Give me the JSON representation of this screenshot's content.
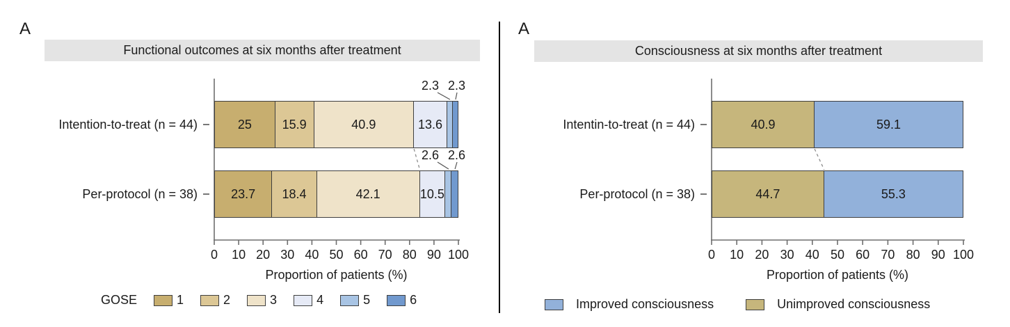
{
  "styles": {
    "title_band_bg": "#e4e4e4",
    "segment_border": "#3f3f3f",
    "axis_color": "#6e6e6e",
    "connector_color": "#8c8c8c",
    "leader_color": "#555555",
    "text_color": "#1a1a1a",
    "divider_color": "#000000"
  },
  "chart_data": [
    {
      "type": "bar",
      "orientation": "horizontal",
      "stacked": true,
      "panel_letter": "A",
      "title": "Functional outcomes at six months after treatment",
      "xlabel": "Proportion of patients (%)",
      "xlim": [
        0,
        100
      ],
      "xticks": [
        0,
        10,
        20,
        30,
        40,
        50,
        60,
        70,
        80,
        90,
        100
      ],
      "grid": false,
      "legend_position": "bottom",
      "legend_title": "GOSE",
      "categories": [
        "Intention-to-treat (n = 44)",
        "Per-protocol (n = 38)"
      ],
      "series": [
        {
          "name": "1",
          "color": "#c7ae6f",
          "values": [
            25,
            23.7
          ]
        },
        {
          "name": "2",
          "color": "#dcc795",
          "values": [
            15.9,
            18.4
          ]
        },
        {
          "name": "3",
          "color": "#efe3c9",
          "values": [
            40.9,
            42.1
          ]
        },
        {
          "name": "4",
          "color": "#e6eaf6",
          "values": [
            13.6,
            10.5
          ]
        },
        {
          "name": "5",
          "color": "#a8c4e4",
          "values": [
            2.3,
            2.6
          ]
        },
        {
          "name": "6",
          "color": "#7199ce",
          "values": [
            2.3,
            2.6
          ]
        }
      ],
      "small_label_threshold": 3,
      "connector_after_series_index": 3
    },
    {
      "type": "bar",
      "orientation": "horizontal",
      "stacked": true,
      "panel_letter": "A",
      "title": "Consciousness at six months after treatment",
      "xlabel": "Proportion of patients (%)",
      "xlim": [
        0,
        100
      ],
      "xticks": [
        0,
        10,
        20,
        30,
        40,
        50,
        60,
        70,
        80,
        90,
        100
      ],
      "grid": false,
      "legend_position": "bottom",
      "categories": [
        "Intentin-to-treat (n = 44)",
        "Per-protocol (n = 38)"
      ],
      "series": [
        {
          "name": "Unimproved consciousness",
          "color": "#c6b67c",
          "values": [
            40.9,
            44.7
          ]
        },
        {
          "name": "Improved consciousness",
          "color": "#92b1da",
          "values": [
            59.1,
            55.3
          ]
        }
      ],
      "legend": [
        {
          "label": "Improved consciousness",
          "color": "#92b1da"
        },
        {
          "label": "Unimproved consciousness",
          "color": "#c6b67c"
        }
      ],
      "small_label_threshold": 3,
      "connector_after_series_index": 1
    }
  ]
}
